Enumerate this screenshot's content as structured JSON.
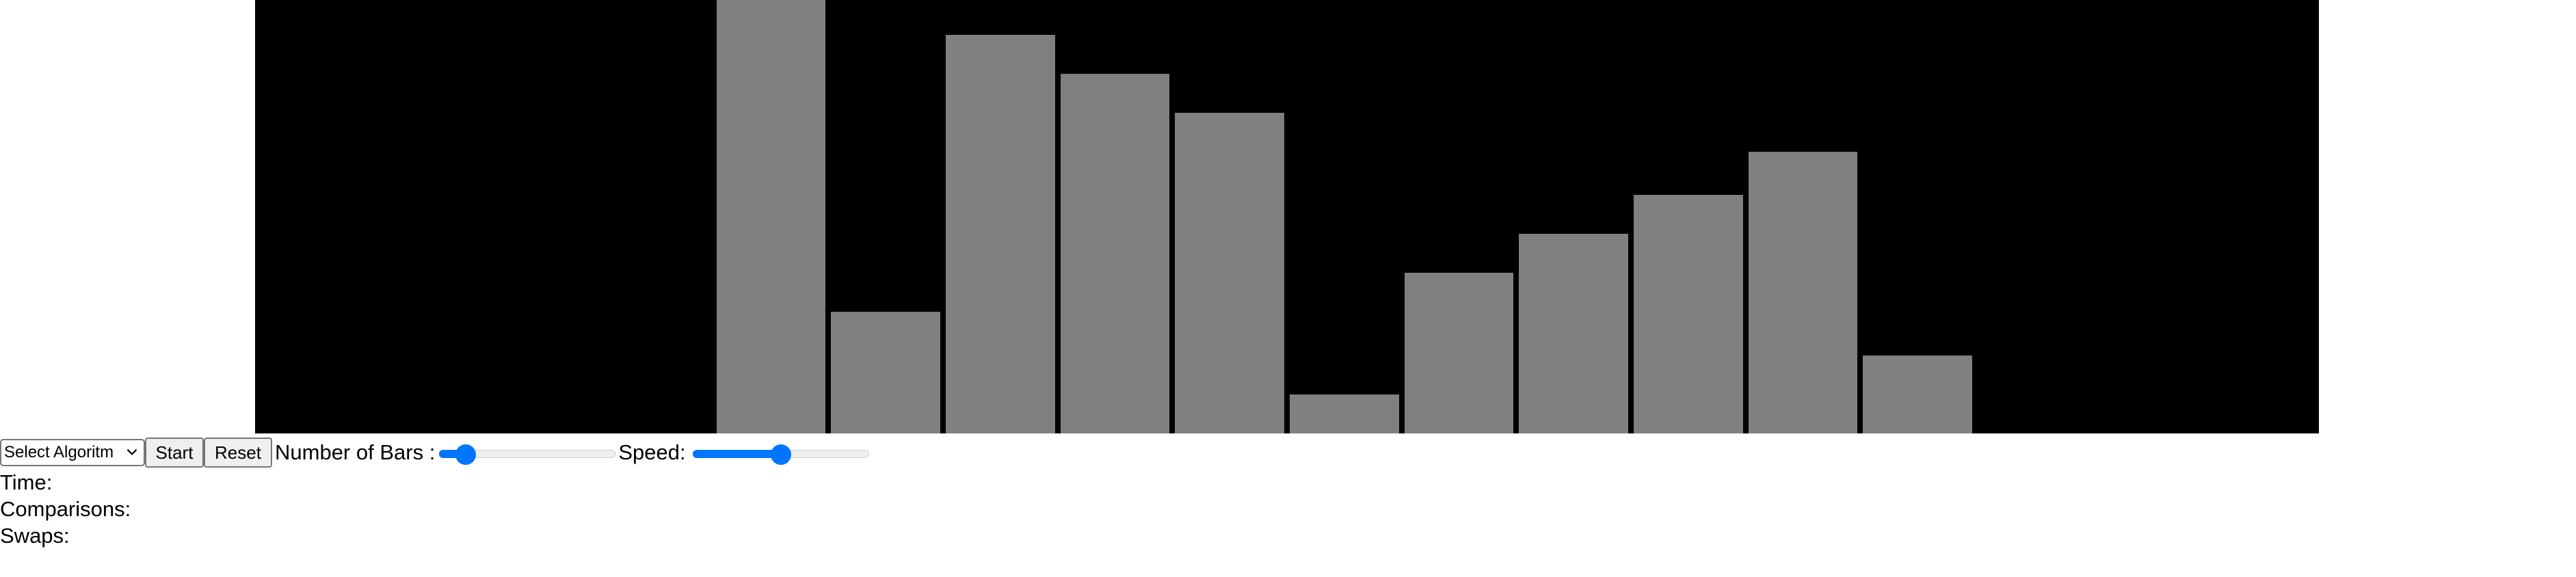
{
  "visualizer": {
    "bars": [
      0,
      0,
      0,
      0,
      1.0,
      0.28,
      0.92,
      0.83,
      0.74,
      0.09,
      0.37,
      0.46,
      0.55,
      0.65,
      0.18,
      0,
      0,
      0
    ],
    "bar_color": "#808080",
    "background_color": "#000000"
  },
  "controls": {
    "algorithm_select": {
      "selected": "Select Algoritm",
      "icon": "chevron-down-icon"
    },
    "start_label": "Start",
    "reset_label": "Reset",
    "bars_label": "Number of Bars :",
    "bars_slider_fraction": 0.15,
    "speed_label": "Speed:",
    "speed_slider_fraction": 0.5,
    "accent_color": "#0075ff"
  },
  "stats": {
    "time_label": "Time:",
    "comparisons_label": "Comparisons:",
    "swaps_label": "Swaps:"
  }
}
